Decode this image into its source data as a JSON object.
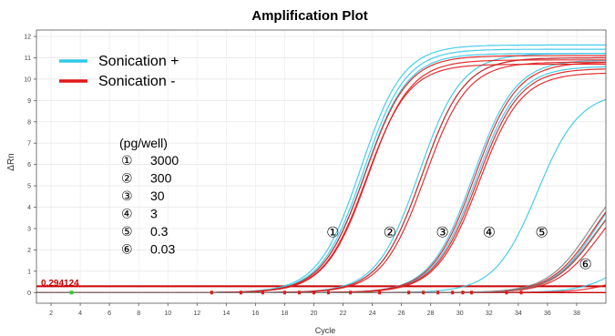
{
  "chart_data": {
    "type": "line",
    "title": "Amplification Plot",
    "xlabel": "Cycle",
    "ylabel": "ΔRn",
    "xlim": [
      1,
      40
    ],
    "ylim": [
      -0.5,
      12.3
    ],
    "x_ticks": [
      2,
      4,
      6,
      8,
      10,
      12,
      14,
      16,
      18,
      20,
      22,
      24,
      26,
      28,
      30,
      32,
      34,
      36,
      38
    ],
    "y_ticks": [
      0,
      1,
      2,
      3,
      4,
      5,
      6,
      7,
      8,
      9,
      10,
      11,
      12
    ],
    "threshold": {
      "value": 0.294124,
      "label": "0.294124",
      "color": "#cc0000"
    },
    "legend": [
      {
        "name": "Sonication +",
        "color": "#33c8e8"
      },
      {
        "name": "Sonication -",
        "color": "#e01818"
      }
    ],
    "concentration_header": "(pg/well)",
    "concentrations": [
      {
        "marker": "①",
        "value": "3000"
      },
      {
        "marker": "②",
        "value": "300"
      },
      {
        "marker": "③",
        "value": "30"
      },
      {
        "marker": "④",
        "value": "3"
      },
      {
        "marker": "⑤",
        "value": "0.3"
      },
      {
        "marker": "⑥",
        "value": "0.03"
      }
    ],
    "curve_labels": [
      {
        "marker": "①",
        "cycle": 21.3,
        "value": 2.6
      },
      {
        "marker": "②",
        "cycle": 25.2,
        "value": 2.6
      },
      {
        "marker": "③",
        "cycle": 28.8,
        "value": 2.6
      },
      {
        "marker": "④",
        "cycle": 32.0,
        "value": 2.6
      },
      {
        "marker": "⑤",
        "cycle": 35.6,
        "value": 2.6
      },
      {
        "marker": "⑥",
        "cycle": 38.6,
        "value": 1.1
      }
    ],
    "series": [
      {
        "name": "Sonication +",
        "color": "#33c8e8",
        "curves": [
          {
            "midpoint": 23.2,
            "plateau": 11.6
          },
          {
            "midpoint": 23.4,
            "plateau": 11.4
          },
          {
            "midpoint": 23.5,
            "plateau": 11.2
          },
          {
            "midpoint": 27.2,
            "plateau": 11.2
          },
          {
            "midpoint": 27.4,
            "plateau": 11.0
          },
          {
            "midpoint": 30.9,
            "plateau": 10.9
          },
          {
            "midpoint": 31.1,
            "plateau": 10.6
          },
          {
            "midpoint": 35.3,
            "plateau": 9.4
          },
          {
            "midpoint": 39.3,
            "plateau": 6.0
          },
          {
            "midpoint": 41.6,
            "plateau": 2.8
          }
        ]
      },
      {
        "name": "Sonication -",
        "color": "#e01818",
        "curves": [
          {
            "midpoint": 23.5,
            "plateau": 11.1
          },
          {
            "midpoint": 23.7,
            "plateau": 10.9
          },
          {
            "midpoint": 23.6,
            "plateau": 10.7
          },
          {
            "midpoint": 27.4,
            "plateau": 11.0
          },
          {
            "midpoint": 27.6,
            "plateau": 10.8
          },
          {
            "midpoint": 31.0,
            "plateau": 10.8
          },
          {
            "midpoint": 31.2,
            "plateau": 10.5
          },
          {
            "midpoint": 31.3,
            "plateau": 10.3
          },
          {
            "midpoint": 39.1,
            "plateau": 5.8
          },
          {
            "midpoint": 39.3,
            "plateau": 5.5
          },
          {
            "midpoint": 39.5,
            "plateau": 5.2
          },
          {
            "midpoint": 42.0,
            "plateau": 1.8
          }
        ]
      },
      {
        "name": "",
        "color": "#808080",
        "curves": [
          {
            "midpoint": 38.9,
            "plateau": 5.9
          },
          {
            "midpoint": 39.2,
            "plateau": 5.4
          }
        ]
      }
    ],
    "grid": true
  }
}
